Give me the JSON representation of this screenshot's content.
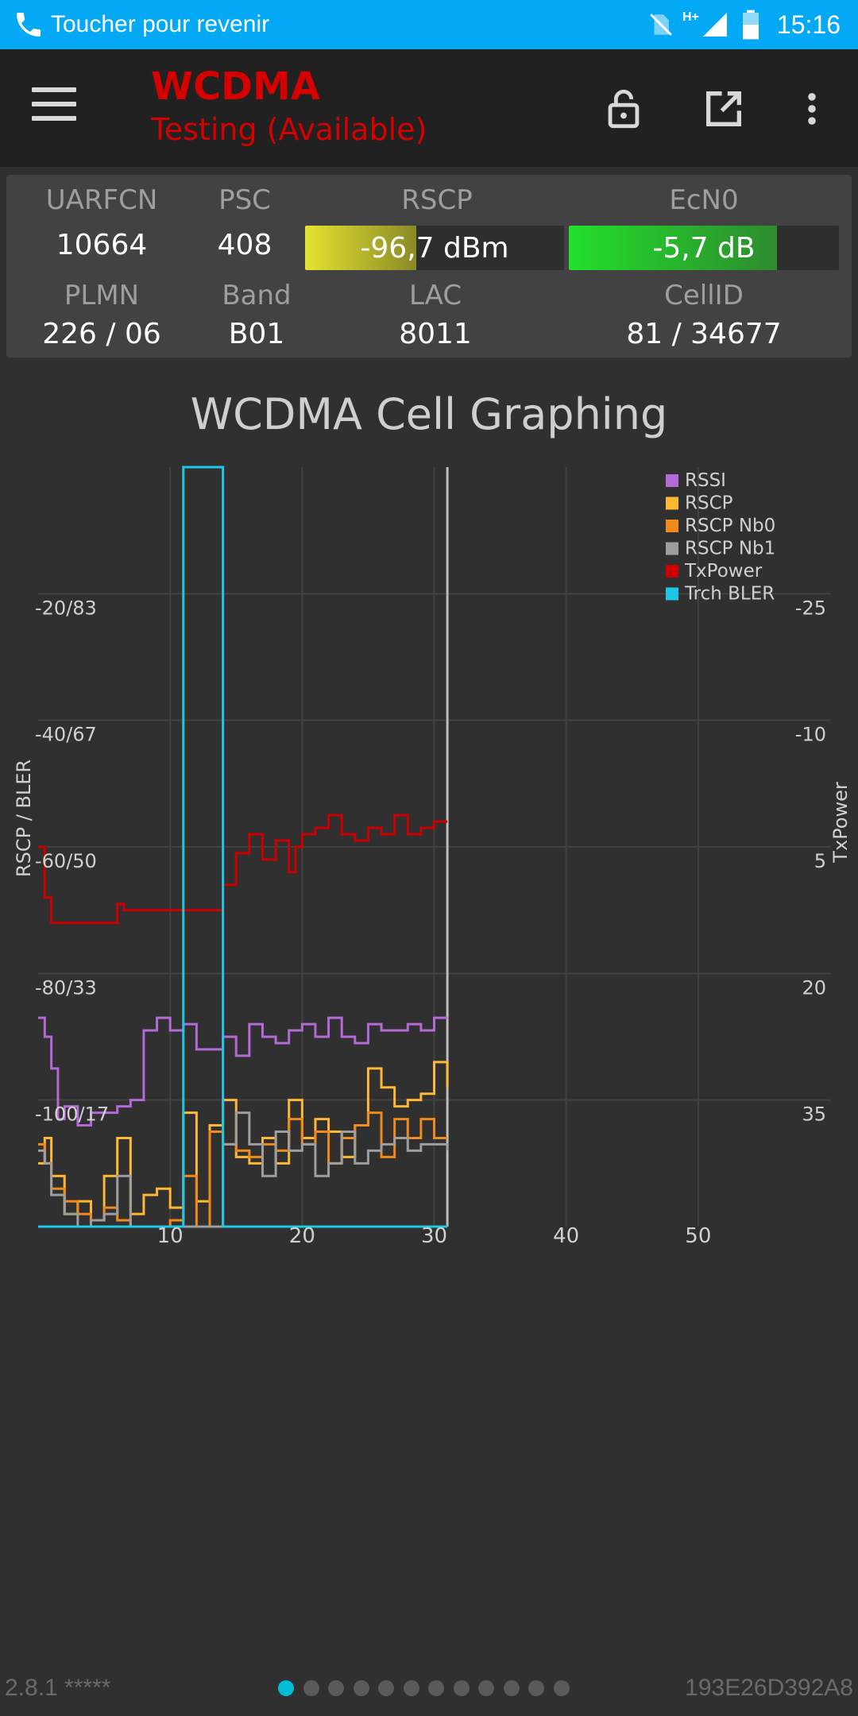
{
  "status_bar": {
    "notification": "Toucher pour revenir",
    "network": "H+",
    "time": "15:16",
    "icons": [
      "phone-icon",
      "no-sim-icon",
      "data-arrows-icon",
      "signal-icon",
      "battery-icon"
    ]
  },
  "toolbar": {
    "title": "WCDMA",
    "subtitle": "Testing (Available)",
    "title_color": "#D50000",
    "icons": [
      "menu-icon",
      "lock-open-icon",
      "open-external-icon",
      "more-vert-icon"
    ]
  },
  "info": {
    "uarfcn_label": "UARFCN",
    "uarfcn": "10664",
    "psc_label": "PSC",
    "psc": "408",
    "rscp_label": "RSCP",
    "rscp": "-96,7 dBm",
    "rscp_fill": 0.43,
    "ecn0_label": "EcN0",
    "ecn0": "-5,7 dB",
    "ecn0_fill": 0.77,
    "plmn_label": "PLMN",
    "plmn": "226 / 06",
    "band_label": "Band",
    "band": "B01",
    "lac_label": "LAC",
    "lac": "8011",
    "cellid_label": "CellID",
    "cellid": "81 / 34677"
  },
  "chart_title": "WCDMA Cell Graphing",
  "chart_data": {
    "type": "line",
    "title": "WCDMA Cell Graphing",
    "ylabel": "RSCP / BLER",
    "y2label": "TxPower",
    "xlim": [
      0,
      60
    ],
    "x_ticks": [
      "10",
      "20",
      "30",
      "40",
      "50"
    ],
    "x_tick_values": [
      10,
      20,
      30,
      40,
      50
    ],
    "ylim": [
      -120,
      0
    ],
    "y_ticks": [
      "-20/83",
      "-40/67",
      "-60/50",
      "-80/33",
      "-100/17"
    ],
    "y_tick_values": [
      -20,
      -40,
      -60,
      -80,
      -100
    ],
    "y2_ticks": [
      "-25",
      "-10",
      "5",
      "20",
      "35"
    ],
    "cursor_x": 31,
    "legend_position": "top-right",
    "grid": true,
    "series": [
      {
        "name": "RSSI",
        "color": "#B36AD6",
        "x": [
          0,
          0.5,
          1,
          1.5,
          2,
          3,
          4,
          5,
          6,
          7,
          8,
          9,
          10,
          11,
          12,
          13,
          14,
          15,
          16,
          17,
          18,
          19,
          20,
          21,
          22,
          23,
          24,
          25,
          26,
          27,
          28,
          29,
          30,
          31
        ],
        "y": [
          -87,
          -90,
          -95,
          -103,
          -101,
          -104,
          -102,
          -102,
          -101,
          -100,
          -89,
          -87,
          -89,
          -88,
          -92,
          -92,
          -90,
          -93,
          -88,
          -90,
          -91,
          -89,
          -88,
          -90,
          -87,
          -90,
          -91,
          -88,
          -89,
          -89,
          -88,
          -89,
          -87,
          -87
        ]
      },
      {
        "name": "RSCP",
        "color": "#FFB833",
        "x": [
          0,
          0.5,
          1,
          2,
          3,
          4,
          5,
          6,
          7,
          8,
          9,
          10,
          11,
          12,
          13,
          14,
          15,
          16,
          17,
          18,
          19,
          20,
          21,
          22,
          23,
          24,
          25,
          26,
          27,
          28,
          29,
          30,
          31
        ],
        "y": [
          -110,
          -106,
          -112,
          -118,
          -116,
          -119,
          -112,
          -106,
          -118,
          -115,
          -114,
          -117,
          -102,
          -116,
          -104,
          -100,
          -109,
          -110,
          -106,
          -110,
          -100,
          -106,
          -103,
          -105,
          -109,
          -104,
          -95,
          -98,
          -101,
          -100,
          -99,
          -94,
          -98
        ]
      },
      {
        "name": "RSCP Nb0",
        "color": "#F08A1C",
        "x": [
          0,
          0.5,
          1,
          2,
          3,
          4,
          5,
          6,
          7,
          8,
          9,
          10,
          11,
          12,
          13,
          14,
          15,
          16,
          17,
          18,
          19,
          20,
          21,
          22,
          23,
          24,
          25,
          26,
          27,
          28,
          29,
          30,
          31
        ],
        "y": [
          -107,
          -110,
          -114,
          -116,
          -118,
          -119,
          -117,
          -119,
          -120,
          -120,
          -120,
          -119,
          -112,
          -120,
          -105,
          -107,
          -108,
          -109,
          -107,
          -108,
          -103,
          -107,
          -105,
          -110,
          -106,
          -104,
          -102,
          -109,
          -103,
          -106,
          -103,
          -106,
          -106
        ]
      },
      {
        "name": "RSCP Nb1",
        "color": "#9E9E9E",
        "x": [
          0,
          0.5,
          1,
          2,
          3,
          4,
          5,
          6,
          7,
          8,
          9,
          10,
          11,
          12,
          13,
          14,
          15,
          16,
          17,
          18,
          19,
          20,
          21,
          22,
          23,
          24,
          25,
          26,
          27,
          28,
          29,
          30,
          31
        ],
        "y": [
          -108,
          -110,
          -115,
          -118,
          -120,
          -119,
          -118,
          -112,
          -120,
          -120,
          -120,
          -120,
          -120,
          -120,
          -120,
          -107,
          -102,
          -107,
          -112,
          -105,
          -108,
          -107,
          -112,
          -110,
          -105,
          -110,
          -108,
          -107,
          -106,
          -108,
          -107,
          -107,
          -108
        ]
      },
      {
        "name": "TxPower",
        "color": "#CC0000",
        "x": [
          0,
          0.5,
          1,
          6,
          6.5,
          14,
          15,
          16,
          17,
          18,
          19,
          19.5,
          20,
          21,
          22,
          23,
          24,
          25,
          26,
          27,
          28,
          29,
          30,
          31
        ],
        "y": [
          -60,
          -68,
          -72,
          -69,
          -70,
          -66,
          -61,
          -58,
          -62,
          -59,
          -64,
          -60,
          -58,
          -57,
          -55,
          -58,
          -59,
          -57,
          -58,
          -55,
          -58,
          -57,
          -56,
          -56
        ]
      },
      {
        "name": "Trch BLER",
        "color": "#1FC6E6",
        "x": [
          0,
          11,
          11,
          14,
          14,
          31
        ],
        "y": [
          -120,
          -120,
          0,
          0,
          -120,
          -120
        ]
      }
    ]
  },
  "footer": {
    "version": "2.8.1 *****",
    "device_id": "193E26D392A8",
    "page_count": 12,
    "active_page": 0,
    "active_color": "#00BCD4"
  }
}
